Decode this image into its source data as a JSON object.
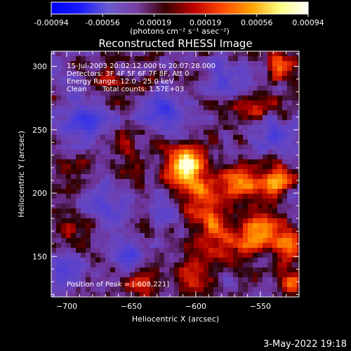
{
  "chart_data": {
    "type": "heatmap",
    "title": "Reconstructed RHESSI Image",
    "xlabel": "Heliocentric X (arcsec)",
    "ylabel": "Heliocentric Y (arcsec)",
    "xlim": [
      -712,
      -520
    ],
    "ylim": [
      118,
      312
    ],
    "x_ticks": [
      -700,
      -650,
      -600,
      -550
    ],
    "y_ticks": [
      150,
      200,
      250,
      300
    ],
    "colorbar": {
      "min": -0.00094,
      "max": 0.00094,
      "ticks": [
        "-0.00094",
        "-0.00056",
        "-0.00019",
        "0.00019",
        "0.00056",
        "0.00094"
      ],
      "units_label": "(photons cm⁻² s⁻¹ asec⁻²)",
      "colors": [
        "#0000ff",
        "#1a1aff",
        "#6a5bd0",
        "#7a3ea0",
        "#3a0000",
        "#c00000",
        "#ff4a00",
        "#ffa000",
        "#ffff80",
        "#ffffff"
      ]
    },
    "annotations": {
      "time_range": "15-Jul-2003 20:02:12.000 to 20:07:28.000",
      "detectors": "Detectors: 3F 4F 5F 6F 7F 8F, Att 0",
      "energy_range": "Energy Range: 12.0 - 25.0 keV",
      "clean": "Clean",
      "total_counts": "Total counts: 1.57E+03",
      "peak": "Position of Peak = [-608,221]"
    },
    "peak": {
      "x": -608,
      "y": 221
    },
    "bright_sources": [
      {
        "x": -608,
        "y": 221,
        "intensity": 1.0,
        "width": 10
      },
      {
        "x": -595,
        "y": 200,
        "intensity": 0.45,
        "width": 12
      },
      {
        "x": -565,
        "y": 205,
        "intensity": 0.6,
        "width": 10
      },
      {
        "x": -538,
        "y": 210,
        "intensity": 0.75,
        "width": 9
      },
      {
        "x": -548,
        "y": 168,
        "intensity": 0.75,
        "width": 10
      },
      {
        "x": -528,
        "y": 158,
        "intensity": 0.65,
        "width": 8
      },
      {
        "x": -578,
        "y": 160,
        "intensity": 0.5,
        "width": 10
      },
      {
        "x": -600,
        "y": 135,
        "intensity": 0.45,
        "width": 9
      },
      {
        "x": -590,
        "y": 175,
        "intensity": 0.4,
        "width": 10
      },
      {
        "x": -652,
        "y": 232,
        "intensity": 0.25,
        "width": 9
      },
      {
        "x": -690,
        "y": 220,
        "intensity": 0.35,
        "width": 9
      },
      {
        "x": -535,
        "y": 300,
        "intensity": 0.55,
        "width": 8
      },
      {
        "x": -560,
        "y": 265,
        "intensity": 0.35,
        "width": 9
      },
      {
        "x": -700,
        "y": 170,
        "intensity": 0.25,
        "width": 8
      },
      {
        "x": -640,
        "y": 128,
        "intensity": 0.35,
        "width": 8
      },
      {
        "x": -665,
        "y": 290,
        "intensity": 0.2,
        "width": 8
      },
      {
        "x": -525,
        "y": 128,
        "intensity": 0.55,
        "width": 7
      }
    ],
    "dark_sources": [
      {
        "x": -690,
        "y": 255,
        "depth": 0.5,
        "width": 12
      },
      {
        "x": -625,
        "y": 265,
        "depth": 0.45,
        "width": 12
      },
      {
        "x": -670,
        "y": 190,
        "depth": 0.4,
        "width": 10
      },
      {
        "x": -655,
        "y": 150,
        "depth": 0.45,
        "width": 10
      },
      {
        "x": -700,
        "y": 140,
        "depth": 0.35,
        "width": 10
      },
      {
        "x": -575,
        "y": 290,
        "depth": 0.4,
        "width": 11
      },
      {
        "x": -540,
        "y": 245,
        "depth": 0.35,
        "width": 10
      },
      {
        "x": -625,
        "y": 185,
        "depth": 0.3,
        "width": 9
      }
    ]
  },
  "footer": {
    "timestamp": "3-May-2022 19:18"
  }
}
